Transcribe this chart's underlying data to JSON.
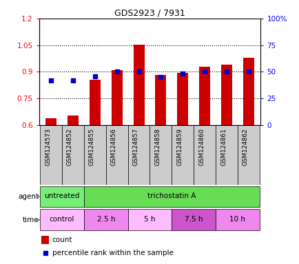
{
  "title": "GDS2923 / 7931",
  "samples": [
    "GSM124573",
    "GSM124852",
    "GSM124855",
    "GSM124856",
    "GSM124857",
    "GSM124858",
    "GSM124859",
    "GSM124860",
    "GSM124861",
    "GSM124862"
  ],
  "count_values": [
    0.637,
    0.655,
    0.855,
    0.91,
    1.052,
    0.882,
    0.895,
    0.93,
    0.94,
    0.98
  ],
  "percentile_values": [
    42,
    42,
    46,
    50,
    50,
    45,
    48,
    50,
    50,
    50
  ],
  "ylim_left": [
    0.6,
    1.2
  ],
  "ylim_right": [
    0,
    100
  ],
  "yticks_left": [
    0.6,
    0.75,
    0.9,
    1.05,
    1.2
  ],
  "yticks_right": [
    0,
    25,
    50,
    75,
    100
  ],
  "ytick_labels_left": [
    "0.6",
    "0.75",
    "0.9",
    "1.05",
    "1.2"
  ],
  "ytick_labels_right": [
    "0",
    "25",
    "50",
    "75",
    "100%"
  ],
  "bar_color": "#cc0000",
  "dot_color": "#0000cc",
  "agent_segments": [
    {
      "text": "untreated",
      "start": 0,
      "end": 2,
      "color": "#77ee77"
    },
    {
      "text": "trichostatin A",
      "start": 2,
      "end": 10,
      "color": "#66dd55"
    }
  ],
  "time_segments": [
    {
      "text": "control",
      "start": 0,
      "end": 2,
      "color": "#ffaaff"
    },
    {
      "text": "2.5 h",
      "start": 2,
      "end": 4,
      "color": "#ee88ee"
    },
    {
      "text": "5 h",
      "start": 4,
      "end": 6,
      "color": "#ff99ff"
    },
    {
      "text": "7.5 h",
      "start": 6,
      "end": 8,
      "color": "#dd66dd"
    },
    {
      "text": "10 h",
      "start": 8,
      "end": 10,
      "color": "#cc44cc"
    }
  ],
  "agent_row_label": "agent",
  "time_row_label": "time",
  "legend_count_label": "count",
  "legend_percentile_label": "percentile rank within the sample",
  "sample_bg_color": "#cccccc",
  "background_color": "#ffffff"
}
